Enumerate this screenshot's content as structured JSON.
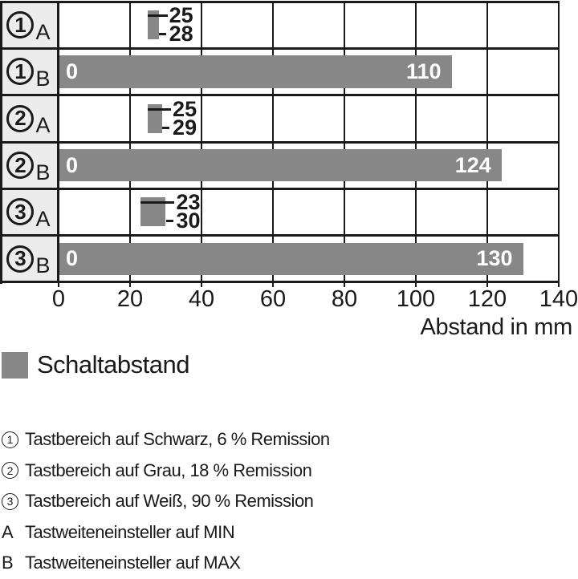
{
  "chart_data": {
    "type": "bar",
    "orientation": "horizontal",
    "title": "",
    "xlabel": "Abstand in mm",
    "ylabel": "",
    "xlim": [
      0,
      140
    ],
    "x_ticks": [
      0,
      20,
      40,
      60,
      80,
      100,
      120,
      140
    ],
    "grid": true,
    "bar_color": "#878787",
    "rows": [
      {
        "group": "1",
        "setting": "A",
        "kind": "range",
        "min": 25,
        "max": 28
      },
      {
        "group": "1",
        "setting": "B",
        "kind": "bar",
        "start": 0,
        "value": 110
      },
      {
        "group": "2",
        "setting": "A",
        "kind": "range",
        "min": 25,
        "max": 29
      },
      {
        "group": "2",
        "setting": "B",
        "kind": "bar",
        "start": 0,
        "value": 124
      },
      {
        "group": "3",
        "setting": "A",
        "kind": "range",
        "min": 23,
        "max": 30
      },
      {
        "group": "3",
        "setting": "B",
        "kind": "bar",
        "start": 0,
        "value": 130
      }
    ],
    "legend": [
      {
        "label": "Schaltabstand",
        "color": "#878787"
      }
    ],
    "legend_position": "below"
  },
  "axis": {
    "title": "Abstand in mm"
  },
  "legend": {
    "label": "Schaltabstand",
    "swatch_color": "#878787"
  },
  "footnotes": [
    {
      "marker": "1",
      "marker_type": "circled",
      "text": "Tastbereich auf Schwarz, 6 % Remission"
    },
    {
      "marker": "2",
      "marker_type": "circled",
      "text": "Tastbereich auf Grau, 18 % Remission"
    },
    {
      "marker": "3",
      "marker_type": "circled",
      "text": "Tastbereich auf Weiß, 90 % Remission"
    },
    {
      "marker": "A",
      "marker_type": "plain",
      "text": "Tastweiteneinsteller auf MIN"
    },
    {
      "marker": "B",
      "marker_type": "plain",
      "text": "Tastweiteneinsteller auf MAX"
    }
  ],
  "colors": {
    "bar": "#878787",
    "row_label_background": "#ececec",
    "line": "#1a1a1a",
    "bar_value_text": "#ffffff"
  }
}
